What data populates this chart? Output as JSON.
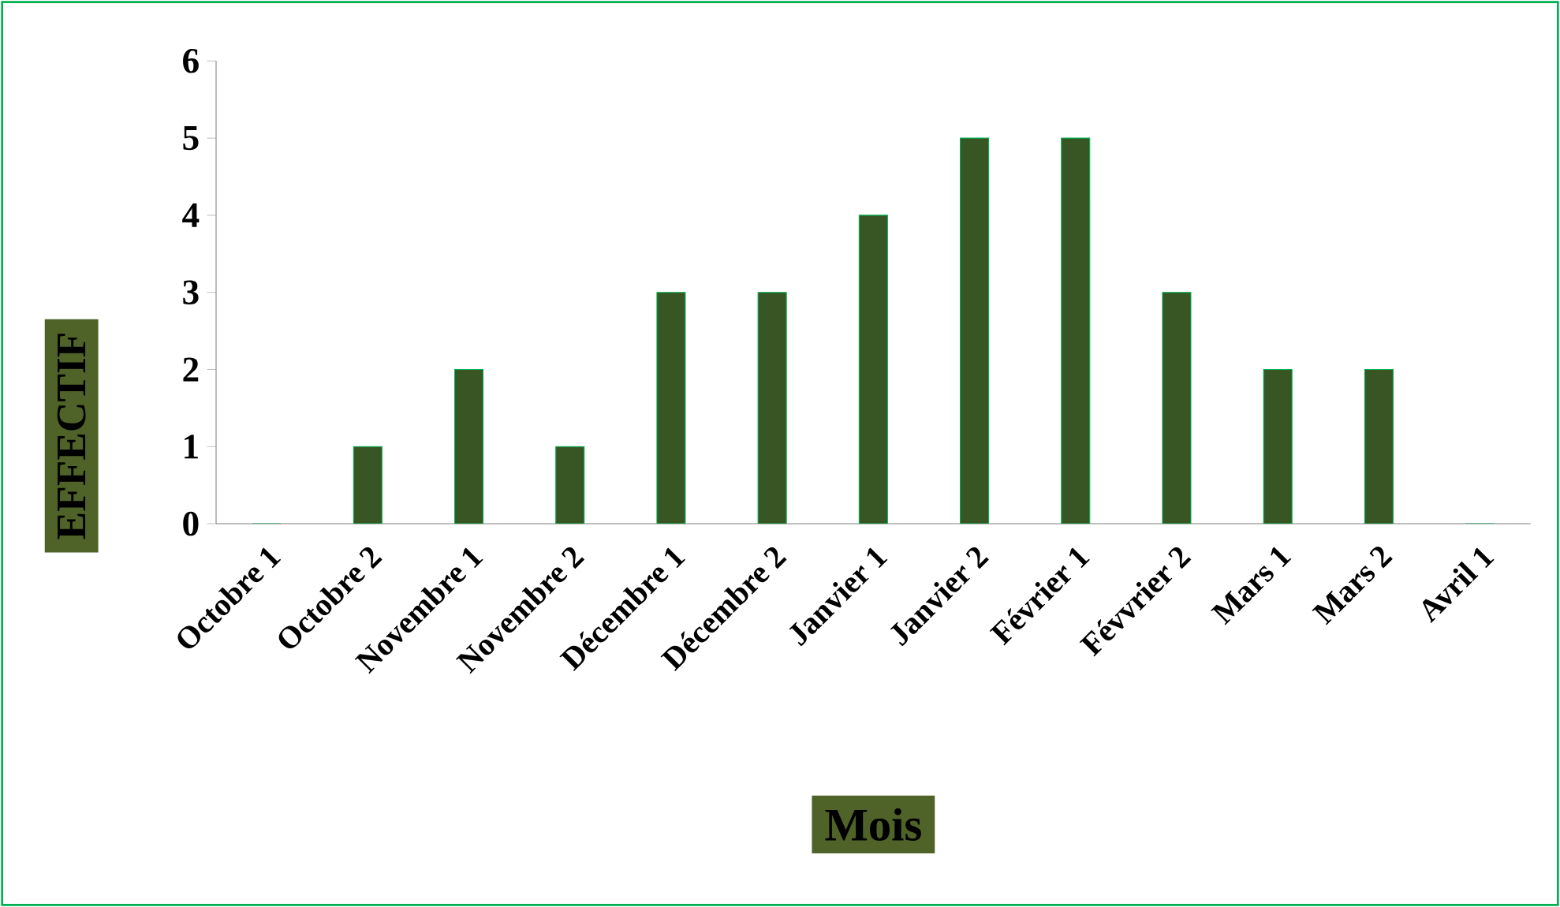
{
  "chart_data": {
    "type": "bar",
    "xlabel": "Mois",
    "ylabel": "EFFECTIF",
    "categories": [
      "Octobre 1",
      "Octobre 2",
      "Novembre 1",
      "Novembre 2",
      "Décembre 1",
      "Décembre 2",
      "Janvier 1",
      "Janvier 2",
      "Février 1",
      "Févvrier 2",
      "Mars 1",
      "Mars 2",
      "Avril 1"
    ],
    "values": [
      0,
      1,
      2,
      1,
      3,
      3,
      4,
      5,
      5,
      3,
      2,
      2,
      0
    ],
    "color": "#375623",
    "ylim": [
      0,
      6
    ],
    "yticks": [
      0,
      1,
      2,
      3,
      4,
      5,
      6
    ]
  }
}
